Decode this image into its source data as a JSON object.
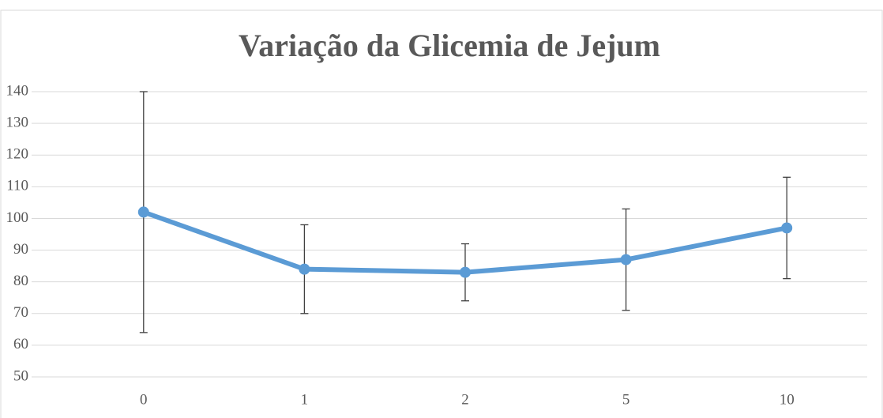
{
  "chart_data": {
    "type": "line",
    "title": "Variação da Glicemia de Jejum",
    "categories": [
      "0",
      "1",
      "2",
      "5",
      "10"
    ],
    "series": [
      {
        "name": "Glicemia de Jejum",
        "color": "#5b9bd5",
        "values": [
          102,
          84,
          83,
          87,
          97
        ],
        "errors": [
          38,
          14,
          9,
          16,
          16
        ]
      }
    ],
    "ylim": [
      50,
      140
    ],
    "yticks": [
      50,
      60,
      70,
      80,
      90,
      100,
      110,
      120,
      130,
      140
    ],
    "grid": true,
    "legend": false
  }
}
